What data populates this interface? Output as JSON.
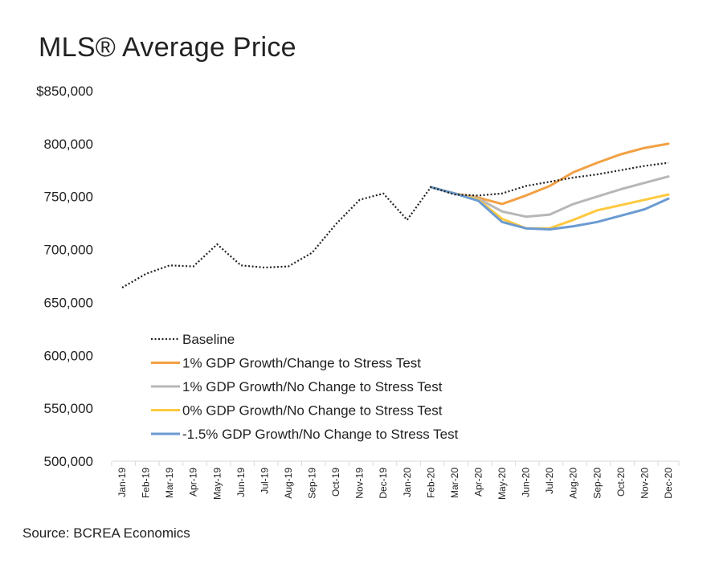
{
  "chart_data": {
    "type": "line",
    "title": "MLS® Average Price",
    "source": "Source: BCREA Economics",
    "ylim": [
      500000,
      850000
    ],
    "yticks": [
      {
        "value": 850000,
        "label": "$850,000"
      },
      {
        "value": 800000,
        "label": "800,000"
      },
      {
        "value": 750000,
        "label": "750,000"
      },
      {
        "value": 700000,
        "label": "700,000"
      },
      {
        "value": 650000,
        "label": "650,000"
      },
      {
        "value": 600000,
        "label": "600,000"
      },
      {
        "value": 550000,
        "label": "550,000"
      },
      {
        "value": 500000,
        "label": "500,000"
      }
    ],
    "categories": [
      "Jan-19",
      "Feb-19",
      "Mar-19",
      "Apr-19",
      "May-19",
      "Jun-19",
      "Jul-19",
      "Aug-19",
      "Sep-19",
      "Oct-19",
      "Nov-19",
      "Dec-19",
      "Jan-20",
      "Feb-20",
      "Mar-20",
      "Apr-20",
      "May-20",
      "Jun-20",
      "Jul-20",
      "Aug-20",
      "Sep-20",
      "Oct-20",
      "Nov-20",
      "Dec-20"
    ],
    "grid": false,
    "legend_position": "bottom-left inside",
    "series": [
      {
        "name": "Baseline",
        "color": "#222222",
        "dash": "dotted",
        "values": [
          664000,
          677000,
          685000,
          684000,
          705000,
          685000,
          683000,
          684000,
          697000,
          724000,
          747000,
          753000,
          728000,
          759000,
          752000,
          751000,
          753000,
          760000,
          764000,
          768000,
          771000,
          775000,
          779000,
          782000
        ]
      },
      {
        "name": "1% GDP Growth/Change to Stress Test",
        "color": "#F2A043",
        "dash": "solid",
        "values": [
          null,
          null,
          null,
          null,
          null,
          null,
          null,
          null,
          null,
          null,
          null,
          null,
          null,
          759000,
          753000,
          749000,
          743000,
          751000,
          760000,
          773000,
          782000,
          790000,
          796000,
          800000
        ]
      },
      {
        "name": "1% GDP Growth/No Change to Stress Test",
        "color": "#B7B7B7",
        "dash": "solid",
        "values": [
          null,
          null,
          null,
          null,
          null,
          null,
          null,
          null,
          null,
          null,
          null,
          null,
          null,
          759000,
          753000,
          748000,
          736000,
          731000,
          733000,
          743000,
          750000,
          757000,
          763000,
          769000
        ]
      },
      {
        "name": "0% GDP Growth/No Change to Stress Test",
        "color": "#FFC940",
        "dash": "solid",
        "values": [
          null,
          null,
          null,
          null,
          null,
          null,
          null,
          null,
          null,
          null,
          null,
          null,
          null,
          759000,
          753000,
          747000,
          729000,
          720000,
          720000,
          728000,
          737000,
          742000,
          747000,
          752000
        ]
      },
      {
        "name": "-1.5% GDP Growth/No Change to Stress Test",
        "color": "#6B9BD2",
        "dash": "solid",
        "values": [
          null,
          null,
          null,
          null,
          null,
          null,
          null,
          null,
          null,
          null,
          null,
          null,
          null,
          759000,
          753000,
          746000,
          726000,
          720000,
          719000,
          722000,
          726000,
          732000,
          738000,
          748000
        ]
      }
    ]
  }
}
